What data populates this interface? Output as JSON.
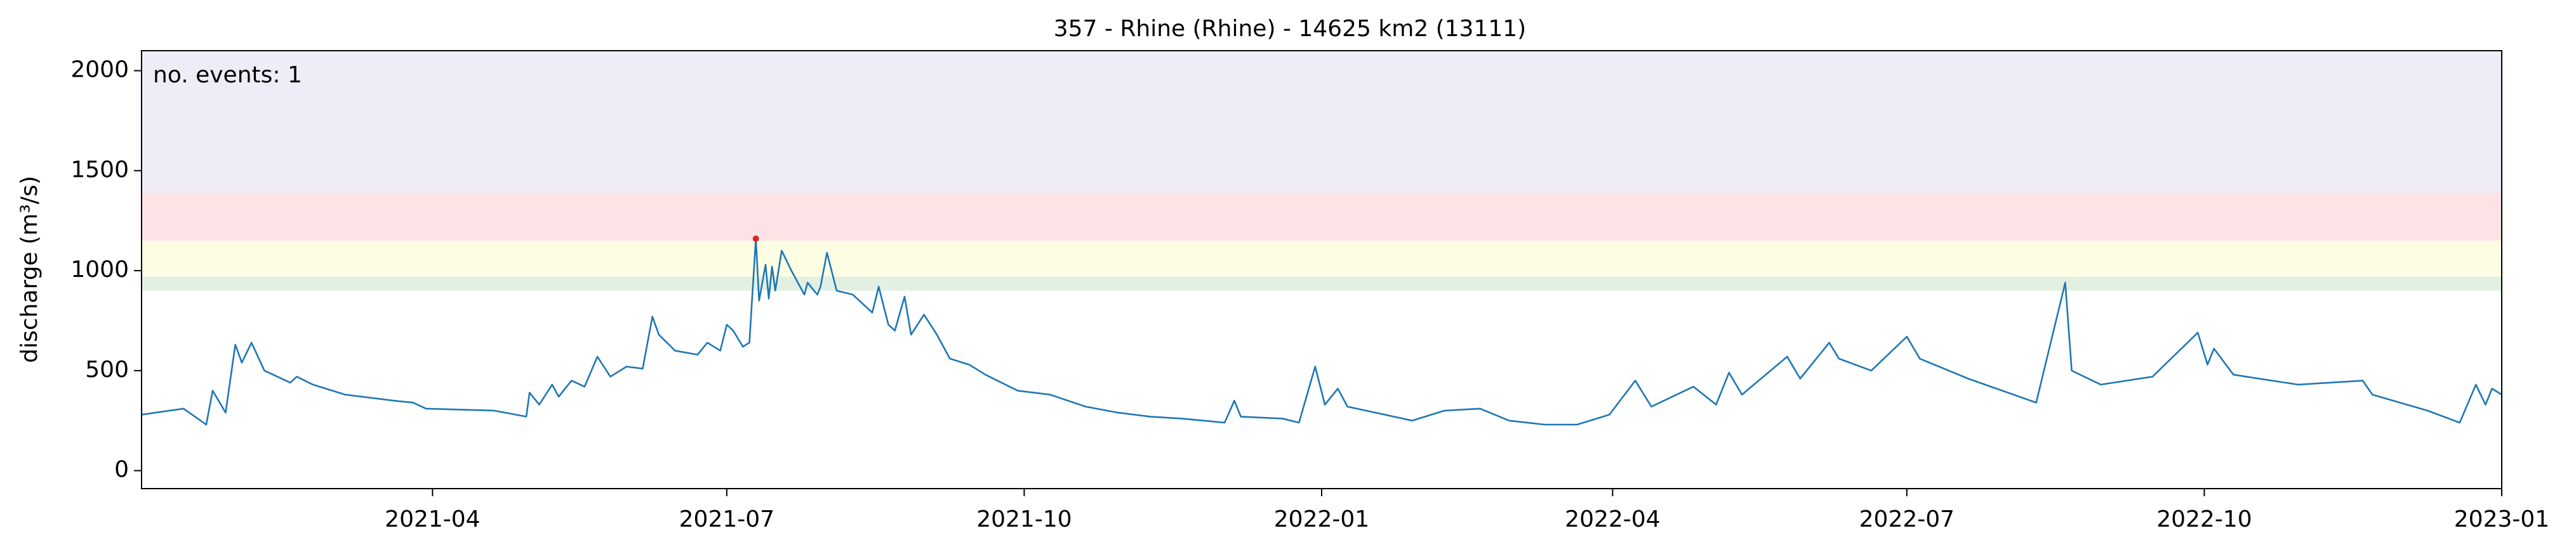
{
  "chart_data": {
    "type": "line",
    "title": "357 - Rhine (Rhine) - 14625 km2 (13111)",
    "y_label": "discharge (m³/s)",
    "annotation": "no. events: 1",
    "annotation_color": "#e00000",
    "color": "#1f77b4",
    "x": [
      "2021-01-01",
      "2021-01-14",
      "2021-01-21",
      "2021-01-23",
      "2021-01-27",
      "2021-01-30",
      "2021-02-01",
      "2021-02-04",
      "2021-02-08",
      "2021-02-16",
      "2021-02-18",
      "2021-02-23",
      "2021-03-05",
      "2021-03-20",
      "2021-03-26",
      "2021-03-30",
      "2021-04-20",
      "2021-04-30",
      "2021-05-01",
      "2021-05-04",
      "2021-05-08",
      "2021-05-10",
      "2021-05-14",
      "2021-05-18",
      "2021-05-22",
      "2021-05-26",
      "2021-05-31",
      "2021-06-05",
      "2021-06-08",
      "2021-06-10",
      "2021-06-15",
      "2021-06-22",
      "2021-06-25",
      "2021-06-29",
      "2021-07-01",
      "2021-07-03",
      "2021-07-06",
      "2021-07-08",
      "2021-07-10",
      "2021-07-11",
      "2021-07-13",
      "2021-07-14",
      "2021-07-15",
      "2021-07-16",
      "2021-07-18",
      "2021-07-21",
      "2021-07-25",
      "2021-07-26",
      "2021-07-29",
      "2021-07-30",
      "2021-08-01",
      "2021-08-04",
      "2021-08-09",
      "2021-08-15",
      "2021-08-17",
      "2021-08-20",
      "2021-08-22",
      "2021-08-25",
      "2021-08-27",
      "2021-08-31",
      "2021-09-04",
      "2021-09-08",
      "2021-09-14",
      "2021-09-19",
      "2021-09-29",
      "2021-10-09",
      "2021-10-20",
      "2021-10-30",
      "2021-11-09",
      "2021-11-19",
      "2021-12-02",
      "2021-12-05",
      "2021-12-07",
      "2021-12-20",
      "2021-12-25",
      "2021-12-30",
      "2022-01-02",
      "2022-01-06",
      "2022-01-09",
      "2022-01-29",
      "2022-02-08",
      "2022-02-19",
      "2022-02-28",
      "2022-03-11",
      "2022-03-21",
      "2022-03-31",
      "2022-04-08",
      "2022-04-13",
      "2022-04-26",
      "2022-05-03",
      "2022-05-07",
      "2022-05-11",
      "2022-05-25",
      "2022-05-29",
      "2022-06-07",
      "2022-06-10",
      "2022-06-20",
      "2022-07-01",
      "2022-07-05",
      "2022-07-20",
      "2022-08-10",
      "2022-08-19",
      "2022-08-21",
      "2022-08-30",
      "2022-09-15",
      "2022-09-29",
      "2022-10-02",
      "2022-10-04",
      "2022-10-10",
      "2022-10-30",
      "2022-11-19",
      "2022-11-22",
      "2022-12-09",
      "2022-12-19",
      "2022-12-24",
      "2022-12-27",
      "2022-12-29",
      "2023-01-01"
    ],
    "values": [
      280,
      310,
      230,
      400,
      290,
      630,
      540,
      640,
      500,
      440,
      470,
      430,
      380,
      350,
      340,
      310,
      300,
      270,
      390,
      330,
      430,
      370,
      450,
      420,
      570,
      470,
      520,
      510,
      770,
      680,
      600,
      580,
      640,
      600,
      730,
      700,
      620,
      640,
      1160,
      850,
      1030,
      860,
      1020,
      900,
      1100,
      1000,
      880,
      940,
      880,
      920,
      1090,
      900,
      880,
      790,
      920,
      730,
      700,
      870,
      680,
      780,
      680,
      560,
      530,
      480,
      400,
      380,
      320,
      290,
      270,
      260,
      240,
      350,
      270,
      260,
      240,
      520,
      330,
      410,
      320,
      250,
      300,
      310,
      250,
      230,
      230,
      280,
      450,
      320,
      420,
      330,
      490,
      380,
      570,
      460,
      640,
      560,
      500,
      670,
      560,
      460,
      340,
      940,
      500,
      430,
      470,
      690,
      530,
      610,
      480,
      430,
      450,
      380,
      300,
      240,
      430,
      330,
      410,
      380
    ],
    "events": {
      "x": [
        "2021-07-10"
      ],
      "values": [
        1160
      ],
      "color": "#d62728"
    },
    "bands": [
      {
        "from": 900,
        "to": 970,
        "color": "#e2f0e2"
      },
      {
        "from": 970,
        "to": 1150,
        "color": "#fdfde4"
      },
      {
        "from": 1150,
        "to": 1390,
        "color": "#fde3e6"
      },
      {
        "from": 1390,
        "to": 2100,
        "color": "#efecf8"
      }
    ],
    "xlim": [
      "2021-01-01",
      "2023-01-01"
    ],
    "xticks": [
      {
        "value": "2021-04-01",
        "label": "2021-04"
      },
      {
        "value": "2021-07-01",
        "label": "2021-07"
      },
      {
        "value": "2021-10-01",
        "label": "2021-10"
      },
      {
        "value": "2022-01-01",
        "label": "2022-01"
      },
      {
        "value": "2022-04-01",
        "label": "2022-04"
      },
      {
        "value": "2022-07-01",
        "label": "2022-07"
      },
      {
        "value": "2022-10-01",
        "label": "2022-10"
      },
      {
        "value": "2023-01-01",
        "label": "2023-01"
      }
    ],
    "ylim": [
      -90,
      2100
    ],
    "yticks": [
      0,
      500,
      1000,
      1500,
      2000
    ]
  }
}
